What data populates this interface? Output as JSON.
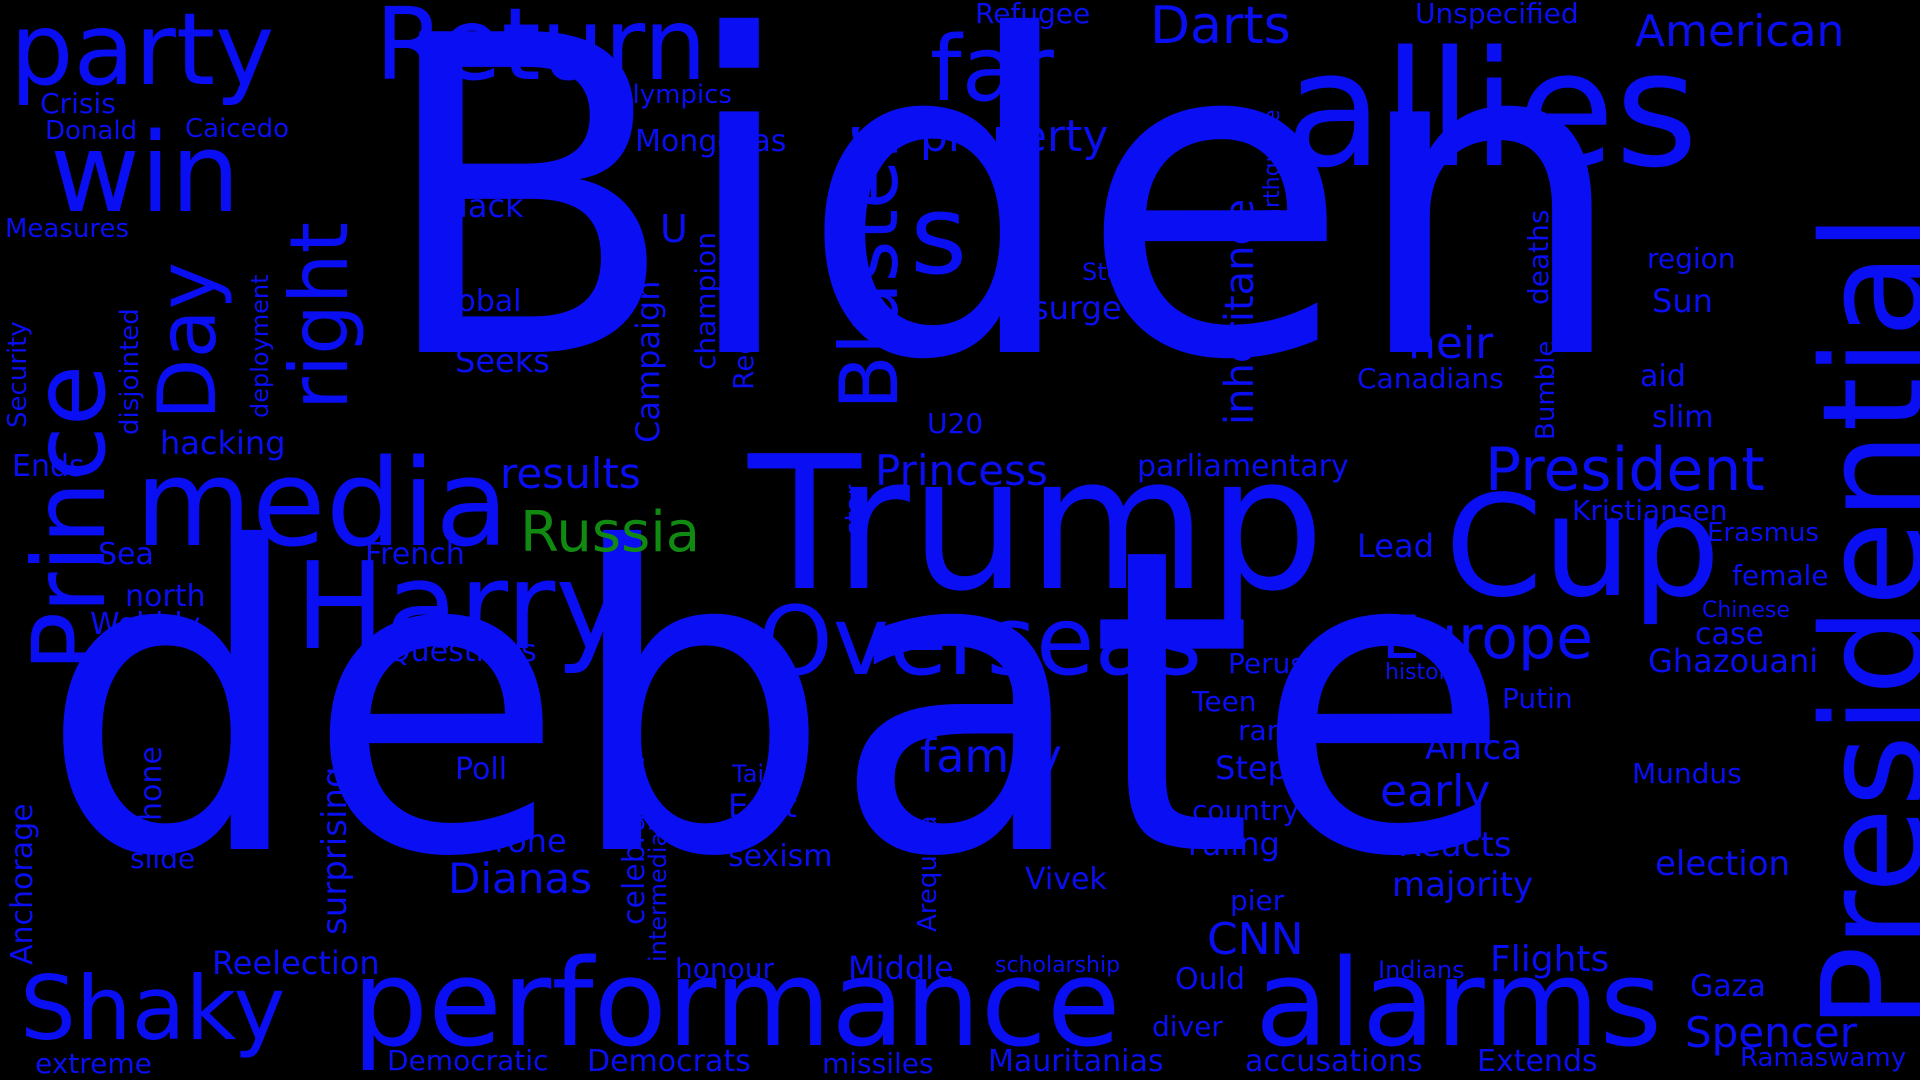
{
  "colors": {
    "background": "#000000",
    "primary": "#0a0ef2",
    "highlight": "#118a11"
  },
  "words": {
    "biden": "Biden",
    "debate": "debate",
    "trump": "Trump",
    "allies": "allies",
    "presidential": "Presidential",
    "performance": "performance",
    "alarms": "alarms",
    "media": "media",
    "harry": "Harry",
    "cup": "Cup",
    "overseas": "Overseas",
    "prince": "Prince",
    "win": "win",
    "return": "Return",
    "party": "party",
    "shaky": "Shaky",
    "europe": "Europe",
    "president": "President",
    "bluster": "Bluster",
    "far": "far",
    "day": "Day",
    "right": "right",
    "s": "s",
    "darts": "Darts",
    "american": "American",
    "russia": "Russia",
    "property": "property",
    "inheritance": "inheritance",
    "princess": "Princess",
    "results": "results",
    "family": "family",
    "dianas": "Dianas",
    "cnn": "CNN",
    "spencer": "Spencer",
    "flights": "Flights",
    "early": "early",
    "heir": "heir",
    "ghazouani": "Ghazouani",
    "election": "election",
    "reacts": "Reacts",
    "majority": "majority",
    "africa": "Africa",
    "surprising": "surprising",
    "reelection": "Reelection",
    "middle": "Middle",
    "democratic": "Democratic",
    "democrats": "Democrats",
    "mauritanias": "Mauritanias",
    "accusations": "accusations",
    "extends": "Extends",
    "missiles": "missiles",
    "extreme": "extreme",
    "refugee": "Refugee",
    "unspecified": "Unspecified",
    "olympics": "Olympics",
    "crisis": "Crisis",
    "donald": "Donald",
    "caicedo": "Caicedo",
    "mongolias": "Mongolias",
    "measures": "Measures",
    "security": "Security",
    "disjointed": "disjointed",
    "deployment": "deployment",
    "black": "Black",
    "global": "global",
    "seeks": "Seeks",
    "u": "U",
    "campaign": "Campaign",
    "champion": "champion",
    "regional": "Regional",
    "hacking": "hacking",
    "ends": "Ends",
    "sea": "Sea",
    "french": "French",
    "north": "north",
    "wobbly": "Wobbly",
    "questions": "Questions",
    "poll": "Poll",
    "phone": "phone",
    "slide": "slide",
    "anchorage": "Anchorage",
    "drone": "Drone",
    "celebration": "celebration",
    "intermediate": "intermediate",
    "taipei": "Taipei",
    "east": "East",
    "sexism": "sexism",
    "arequipa": "Arequipa",
    "vivek": "Vivek",
    "u20": "U20",
    "star": "star",
    "story": "Story",
    "surge": "surge",
    "parliamentary": "parliamentary",
    "lead": "Lead",
    "earthquake": "earthquake",
    "deaths": "deaths",
    "bumble": "Bumble",
    "canadians": "Canadians",
    "region": "region",
    "sun": "Sun",
    "aid": "aid",
    "slim": "slim",
    "kristiansen": "Kristiansen",
    "erasmus": "Erasmus",
    "female": "female",
    "chinese": "Chinese",
    "case": "case",
    "historic": "historic",
    "perus": "Perus",
    "putin": "Putin",
    "teen": "Teen",
    "range": "range",
    "step": "Step",
    "country": "country",
    "ruling": "ruling",
    "mundus": "Mundus",
    "pier": "pier",
    "ould": "Ould",
    "diver": "diver",
    "scholarship": "scholarship",
    "honour": "honour",
    "indians": "Indians",
    "gaza": "Gaza",
    "ramaswamy": "Ramaswamy"
  }
}
